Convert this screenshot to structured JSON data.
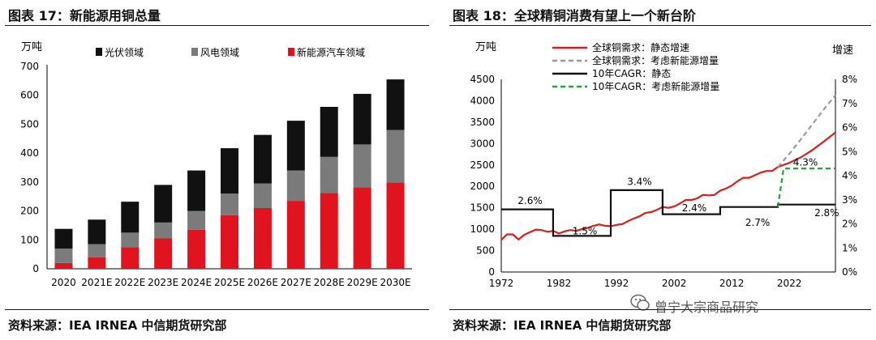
{
  "left": {
    "fig_title": "图表 17：新能源用铜总量",
    "source": "资料来源：IEA IRNEA 中信期货研究部",
    "chart_data": {
      "type": "bar",
      "stacked": true,
      "title": "新能源用铜总量",
      "ylabel": "万吨",
      "ylim": [
        0,
        700
      ],
      "yticks": [
        0,
        100,
        200,
        300,
        400,
        500,
        600,
        700
      ],
      "categories": [
        "2020",
        "2021E",
        "2022E",
        "2023E",
        "2024E",
        "2025E",
        "2026E",
        "2027E",
        "2028E",
        "2029E",
        "2030E"
      ],
      "legend_position": "top",
      "series": [
        {
          "name": "新能源汽车领域",
          "color": "#e0141e",
          "values": [
            20,
            40,
            75,
            105,
            135,
            185,
            210,
            235,
            262,
            282,
            298
          ]
        },
        {
          "name": "风电领域",
          "color": "#7b7b7b",
          "values": [
            50,
            45,
            50,
            55,
            65,
            75,
            85,
            105,
            125,
            148,
            182
          ]
        },
        {
          "name": "光伏领域",
          "color": "#111111",
          "values": [
            68,
            85,
            107,
            130,
            140,
            157,
            168,
            172,
            173,
            175,
            175
          ]
        }
      ]
    }
  },
  "right": {
    "fig_title": "图表 18：全球精铜消费有望上一个新台阶",
    "source": "资料来源：IEA IRNEA 中信期货研究部",
    "watermark": "曾宁大宗商品研究",
    "chart_data": {
      "type": "line",
      "title": "全球精铜消费有望上一个新台阶",
      "ylabel_left": "万吨",
      "ylabel_right": "增速",
      "ylim_left": [
        0,
        4500
      ],
      "yticks_left": [
        0,
        500,
        1000,
        1500,
        2000,
        2500,
        3000,
        3500,
        4000,
        4500
      ],
      "ylim_right": [
        0,
        8
      ],
      "yticks_right": [
        "0%",
        "1%",
        "2%",
        "3%",
        "4%",
        "5%",
        "6%",
        "7%",
        "8%"
      ],
      "xlim": [
        1972,
        2030
      ],
      "xticks": [
        1972,
        1982,
        1992,
        2002,
        2012,
        2022
      ],
      "legend_position": "top",
      "series": [
        {
          "name": "全球铜需求：静态增速",
          "axis": "left",
          "color": "#d42020",
          "dash": "solid",
          "points": [
            [
              1972,
              750
            ],
            [
              1973,
              880
            ],
            [
              1974,
              880
            ],
            [
              1975,
              760
            ],
            [
              1976,
              870
            ],
            [
              1977,
              930
            ],
            [
              1978,
              990
            ],
            [
              1979,
              980
            ],
            [
              1980,
              940
            ],
            [
              1981,
              960
            ],
            [
              1982,
              900
            ],
            [
              1983,
              950
            ],
            [
              1984,
              980
            ],
            [
              1985,
              960
            ],
            [
              1986,
              1000
            ],
            [
              1987,
              1030
            ],
            [
              1988,
              1080
            ],
            [
              1989,
              1110
            ],
            [
              1990,
              1080
            ],
            [
              1991,
              1070
            ],
            [
              1992,
              1100
            ],
            [
              1993,
              1120
            ],
            [
              1994,
              1190
            ],
            [
              1995,
              1250
            ],
            [
              1996,
              1300
            ],
            [
              1997,
              1380
            ],
            [
              1998,
              1400
            ],
            [
              1999,
              1450
            ],
            [
              2000,
              1520
            ],
            [
              2001,
              1500
            ],
            [
              2002,
              1530
            ],
            [
              2003,
              1600
            ],
            [
              2004,
              1680
            ],
            [
              2005,
              1680
            ],
            [
              2006,
              1720
            ],
            [
              2007,
              1800
            ],
            [
              2008,
              1790
            ],
            [
              2009,
              1800
            ],
            [
              2010,
              1900
            ],
            [
              2011,
              1950
            ],
            [
              2012,
              2020
            ],
            [
              2013,
              2120
            ],
            [
              2014,
              2200
            ],
            [
              2015,
              2200
            ],
            [
              2016,
              2260
            ],
            [
              2017,
              2320
            ],
            [
              2018,
              2360
            ],
            [
              2019,
              2360
            ],
            [
              2020,
              2450
            ],
            [
              2022,
              2550
            ],
            [
              2024,
              2680
            ],
            [
              2026,
              2850
            ],
            [
              2028,
              3050
            ],
            [
              2030,
              3260
            ]
          ]
        },
        {
          "name": "全球铜需求：考虑新能源增量",
          "axis": "left",
          "color": "#9a9a9a",
          "dash": "dashed",
          "points": [
            [
              2020,
              2450
            ],
            [
              2022,
              2760
            ],
            [
              2024,
              3100
            ],
            [
              2026,
              3450
            ],
            [
              2028,
              3800
            ],
            [
              2030,
              4130
            ]
          ]
        },
        {
          "name": "10年CAGR：静态",
          "axis": "right",
          "color": "#111111",
          "dash": "solid",
          "points": [
            [
              1972,
              2.6
            ],
            [
              1981,
              2.6
            ],
            [
              1981,
              1.5
            ],
            [
              1991,
              1.5
            ],
            [
              1991,
              3.4
            ],
            [
              2000,
              3.4
            ],
            [
              2000,
              2.4
            ],
            [
              2010,
              2.4
            ],
            [
              2010,
              2.7
            ],
            [
              2020,
              2.7
            ],
            [
              2020,
              2.8
            ],
            [
              2030,
              2.8
            ]
          ]
        },
        {
          "name": "10年CAGR：考虑新能源增量",
          "axis": "right",
          "color": "#1fa53a",
          "dash": "dashed",
          "points": [
            [
              2020,
              2.7
            ],
            [
              2021,
              4.3
            ],
            [
              2030,
              4.3
            ]
          ]
        }
      ],
      "annotations": [
        "2.6%",
        "1.5%",
        "3.4%",
        "2.4%",
        "2.7%",
        "4.3%",
        "2.8%"
      ]
    }
  }
}
